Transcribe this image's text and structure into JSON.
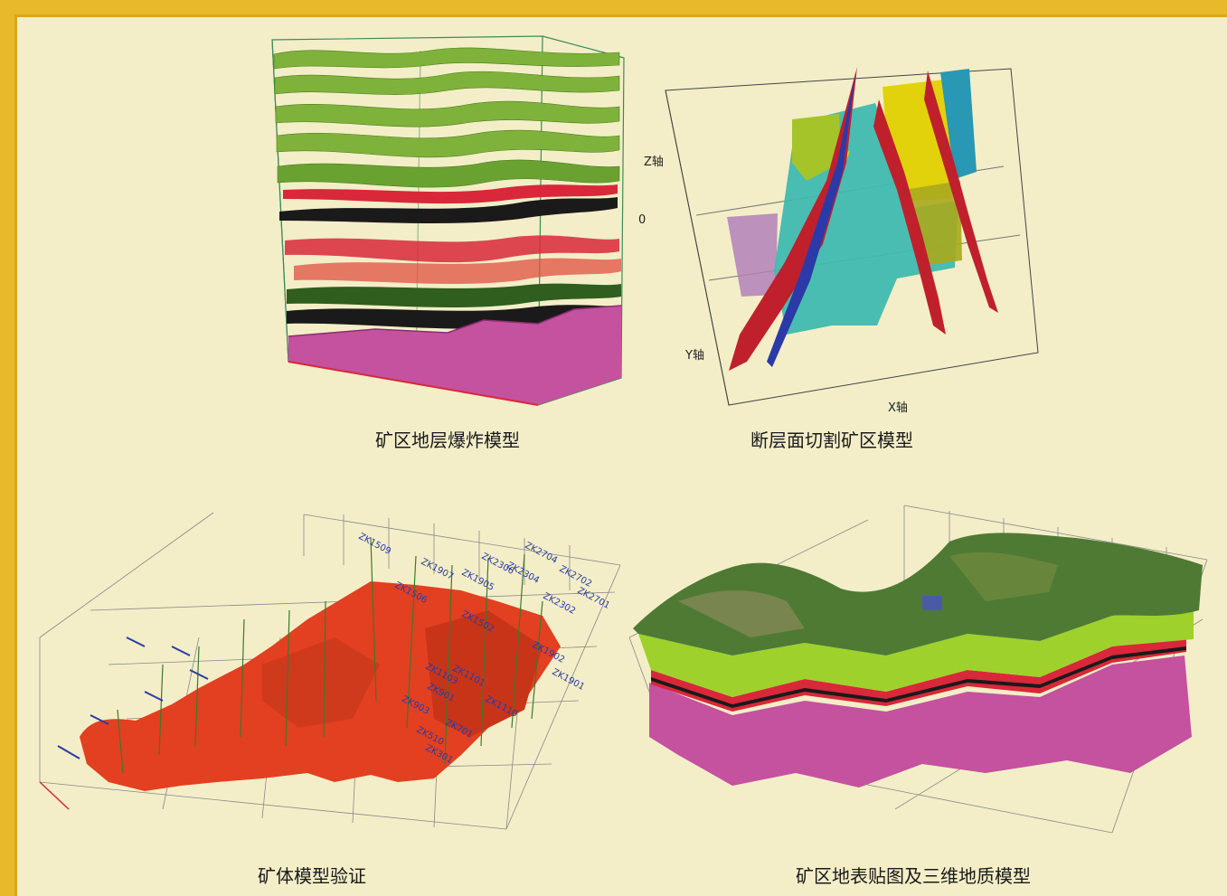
{
  "panels": {
    "strata": {
      "caption": "矿区地层爆炸模型"
    },
    "fault": {
      "caption": "断层面切割矿区模型",
      "axis_z": "Z轴",
      "axis_zero": "0",
      "axis_y": "Y轴",
      "axis_x": "X轴"
    },
    "orebody": {
      "caption": "矿体模型验证",
      "drill_labels": [
        "ZK1509",
        "ZK1907",
        "ZK1905",
        "ZK2306",
        "ZK2304",
        "ZK2704",
        "ZK2702",
        "ZK2701",
        "ZK2302",
        "ZK1502",
        "ZK1902",
        "ZK1901",
        "ZK1101",
        "ZK1103",
        "ZK901",
        "ZK903",
        "ZK701",
        "ZK510",
        "ZK301",
        "ZK1110",
        "ZK1506"
      ]
    },
    "surface": {
      "caption": "矿区地表贴图及三维地质模型"
    }
  },
  "colors": {
    "background": "#f3eec8",
    "border": "#e8b92a",
    "strata_green": "#7fb23a",
    "strata_red": "#d8283a",
    "strata_black": "#1a1a1a",
    "strata_magenta": "#c4529f",
    "ore_red": "#e24020",
    "fault_cyan": "#3fb9b0",
    "fault_yellow": "#e2d20c",
    "fault_purple": "#b280b8"
  }
}
